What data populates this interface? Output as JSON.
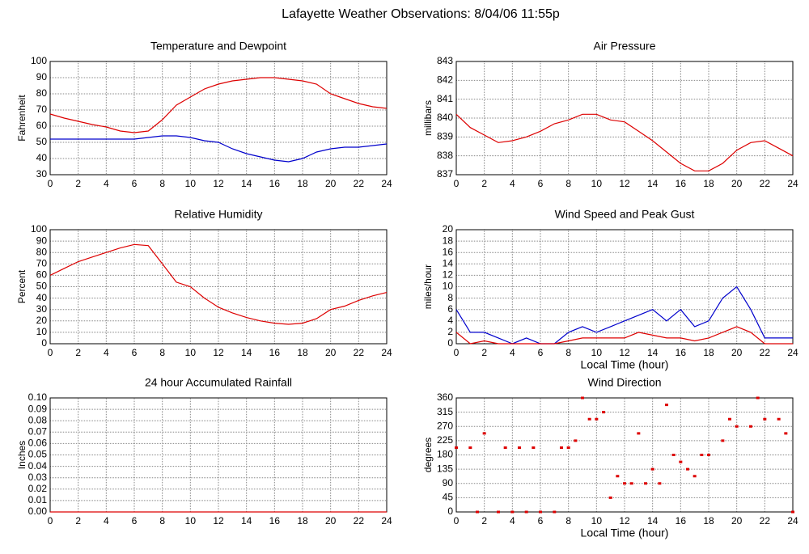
{
  "title": "Lafayette Weather Observations: 8/04/06 11:55p",
  "chart_data": [
    {
      "type": "line",
      "title": "Temperature and Dewpoint",
      "ylabel": "Fahrenheit",
      "x": [
        0,
        1,
        2,
        3,
        4,
        5,
        6,
        7,
        8,
        9,
        10,
        11,
        12,
        13,
        14,
        15,
        16,
        17,
        18,
        19,
        20,
        21,
        22,
        23,
        24
      ],
      "series": [
        {
          "color": "#dd0000",
          "values": [
            67.5,
            65,
            63,
            61,
            59.5,
            57,
            56,
            57,
            64,
            73,
            78,
            83,
            86,
            88,
            89,
            90,
            90,
            89,
            88,
            86,
            80,
            77,
            74,
            72,
            71
          ]
        },
        {
          "color": "#0000cc",
          "values": [
            52,
            52,
            52,
            52,
            52,
            52,
            52,
            53,
            54,
            54,
            53,
            51,
            50,
            46,
            43,
            41,
            39,
            38,
            40,
            44,
            46,
            47,
            47,
            48,
            49
          ]
        }
      ],
      "xlim": [
        0,
        24
      ],
      "xticks": [
        0,
        2,
        4,
        6,
        8,
        10,
        12,
        14,
        16,
        18,
        20,
        22,
        24
      ],
      "ylim": [
        30,
        100
      ],
      "yticks": [
        30,
        40,
        50,
        60,
        70,
        80,
        90,
        100
      ],
      "grid": true
    },
    {
      "type": "line",
      "title": "Air Pressure",
      "ylabel": "millibars",
      "x": [
        0,
        1,
        2,
        3,
        4,
        5,
        6,
        7,
        8,
        9,
        10,
        11,
        12,
        13,
        14,
        15,
        16,
        17,
        18,
        19,
        20,
        21,
        22,
        23,
        24
      ],
      "series": [
        {
          "color": "#dd0000",
          "values": [
            840.2,
            839.5,
            839.1,
            838.7,
            838.8,
            839.0,
            839.3,
            839.7,
            839.9,
            840.2,
            840.2,
            839.9,
            839.8,
            839.3,
            838.8,
            838.2,
            837.6,
            837.2,
            837.2,
            837.6,
            838.3,
            838.7,
            838.8,
            838.4,
            838.0
          ]
        }
      ],
      "xlim": [
        0,
        24
      ],
      "xticks": [
        0,
        2,
        4,
        6,
        8,
        10,
        12,
        14,
        16,
        18,
        20,
        22,
        24
      ],
      "ylim": [
        837,
        843
      ],
      "yticks": [
        837,
        838,
        839,
        840,
        841,
        842,
        843
      ],
      "grid": true
    },
    {
      "type": "line",
      "title": "Relative Humidity",
      "ylabel": "Percent",
      "x": [
        0,
        1,
        2,
        3,
        4,
        5,
        6,
        7,
        8,
        9,
        10,
        11,
        12,
        13,
        14,
        15,
        16,
        17,
        18,
        19,
        20,
        21,
        22,
        23,
        24
      ],
      "series": [
        {
          "color": "#dd0000",
          "values": [
            60,
            66,
            72,
            76,
            80,
            84,
            87,
            86,
            70,
            54,
            50,
            40,
            32,
            27,
            23,
            20,
            18,
            17,
            18,
            22,
            30,
            33,
            38,
            42,
            45
          ]
        }
      ],
      "xlim": [
        0,
        24
      ],
      "xticks": [
        0,
        2,
        4,
        6,
        8,
        10,
        12,
        14,
        16,
        18,
        20,
        22,
        24
      ],
      "ylim": [
        0,
        100
      ],
      "yticks": [
        0,
        10,
        20,
        30,
        40,
        50,
        60,
        70,
        80,
        90,
        100
      ],
      "grid": true
    },
    {
      "type": "line",
      "title": "Wind Speed and Peak Gust",
      "ylabel": "miles/hour",
      "xlabel": "Local Time (hour)",
      "x": [
        0,
        1,
        2,
        3,
        4,
        5,
        6,
        7,
        8,
        9,
        10,
        11,
        12,
        13,
        14,
        15,
        16,
        17,
        18,
        19,
        20,
        21,
        22,
        23,
        24
      ],
      "series": [
        {
          "color": "#0000cc",
          "values": [
            6,
            2,
            2,
            1,
            0,
            1,
            0,
            0,
            2,
            3,
            2,
            3,
            4,
            5,
            6,
            4,
            6,
            3,
            4,
            8,
            10,
            6,
            1,
            1,
            1
          ]
        },
        {
          "color": "#dd0000",
          "values": [
            2,
            0,
            0.5,
            0,
            0,
            0,
            0,
            0,
            0.5,
            1,
            1,
            1,
            1,
            2,
            1.5,
            1,
            1,
            0.5,
            1,
            2,
            3,
            2,
            0,
            0,
            0
          ]
        }
      ],
      "xlim": [
        0,
        24
      ],
      "xticks": [
        0,
        2,
        4,
        6,
        8,
        10,
        12,
        14,
        16,
        18,
        20,
        22,
        24
      ],
      "ylim": [
        0,
        20
      ],
      "yticks": [
        0,
        2,
        4,
        6,
        8,
        10,
        12,
        14,
        16,
        18,
        20
      ],
      "grid": true
    },
    {
      "type": "line",
      "title": "24 hour Accumulated Rainfall",
      "ylabel": "Inches",
      "x": [
        0,
        1,
        2,
        3,
        4,
        5,
        6,
        7,
        8,
        9,
        10,
        11,
        12,
        13,
        14,
        15,
        16,
        17,
        18,
        19,
        20,
        21,
        22,
        23,
        24
      ],
      "series": [
        {
          "color": "#dd0000",
          "values": [
            0,
            0,
            0,
            0,
            0,
            0,
            0,
            0,
            0,
            0,
            0,
            0,
            0,
            0,
            0,
            0,
            0,
            0,
            0,
            0,
            0,
            0,
            0,
            0,
            0
          ]
        }
      ],
      "xlim": [
        0,
        24
      ],
      "xticks": [
        0,
        2,
        4,
        6,
        8,
        10,
        12,
        14,
        16,
        18,
        20,
        22,
        24
      ],
      "ylim": [
        0,
        0.1
      ],
      "yticks": [
        {
          "value": 0,
          "label": "0.00"
        },
        {
          "value": 0.01,
          "label": "0.01"
        },
        {
          "value": 0.02,
          "label": "0.02"
        },
        {
          "value": 0.03,
          "label": "0.03"
        },
        {
          "value": 0.04,
          "label": "0.04"
        },
        {
          "value": 0.05,
          "label": "0.05"
        },
        {
          "value": 0.06,
          "label": "0.06"
        },
        {
          "value": 0.07,
          "label": "0.07"
        },
        {
          "value": 0.08,
          "label": "0.08"
        },
        {
          "value": 0.09,
          "label": "0.09"
        },
        {
          "value": 0.1,
          "label": "0.10"
        }
      ],
      "grid": true
    },
    {
      "type": "scatter",
      "title": "Wind Direction",
      "ylabel": "degrees",
      "xlabel": "Local Time (hour)",
      "color": "#dd0000",
      "x": [
        0,
        1,
        1.5,
        2,
        3,
        3.5,
        4,
        4.5,
        5,
        5.5,
        6,
        7,
        7.5,
        8,
        8.5,
        9,
        9.5,
        10,
        10.5,
        11,
        11.5,
        12,
        12.5,
        13,
        13.5,
        14,
        14.5,
        15,
        15.5,
        16,
        16.5,
        17,
        17.5,
        18,
        19,
        19.5,
        20,
        21,
        21.5,
        22,
        23,
        23.5,
        24
      ],
      "values": [
        203,
        203,
        0,
        248,
        0,
        203,
        0,
        203,
        0,
        203,
        0,
        0,
        203,
        203,
        225,
        360,
        293,
        293,
        315,
        45,
        113,
        90,
        90,
        248,
        90,
        135,
        90,
        338,
        180,
        158,
        135,
        113,
        180,
        180,
        225,
        293,
        270,
        270,
        360,
        293,
        293,
        248,
        0
      ],
      "xlim": [
        0,
        24
      ],
      "xticks": [
        0,
        2,
        4,
        6,
        8,
        10,
        12,
        14,
        16,
        18,
        20,
        22,
        24
      ],
      "ylim": [
        0,
        360
      ],
      "yticks": [
        0,
        45,
        90,
        135,
        180,
        225,
        270,
        315,
        360
      ],
      "grid": true
    }
  ]
}
